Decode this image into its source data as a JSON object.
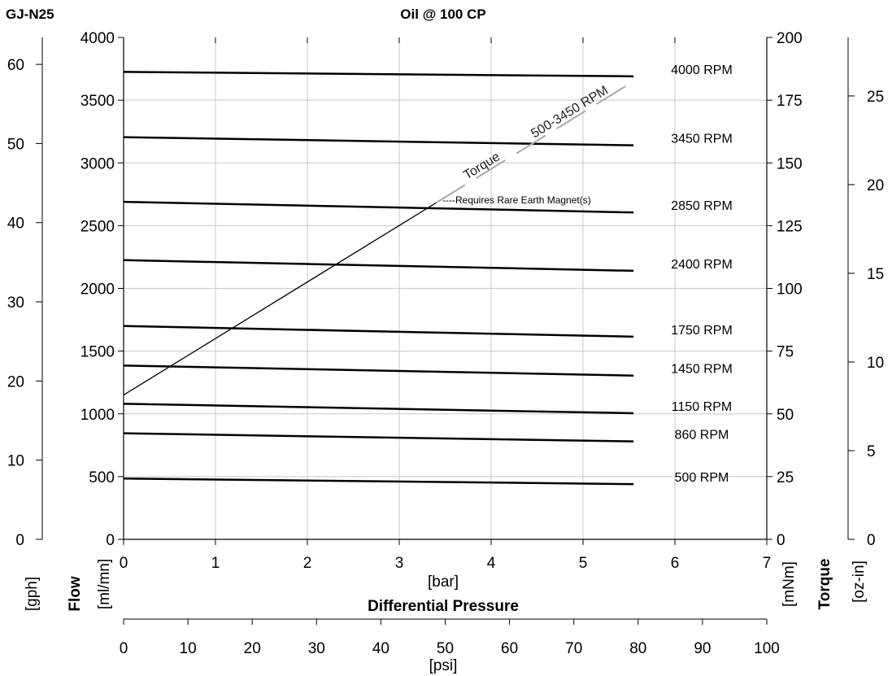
{
  "chart_data": {
    "type": "line",
    "model": "GJ-N25",
    "title": "Oil @ 100 CP",
    "xlabel": "Differential Pressure",
    "x_unit_bar": "[bar]",
    "x_unit_psi": "[psi]",
    "xlim_bar": [
      0,
      7
    ],
    "xlim_psi": [
      0,
      100
    ],
    "x_ticks_bar": [
      "0",
      "1",
      "2",
      "3",
      "4",
      "5",
      "6",
      "7"
    ],
    "x_ticks_psi": [
      "0",
      "10",
      "20",
      "30",
      "40",
      "50",
      "60",
      "70",
      "80",
      "90",
      "100"
    ],
    "flow_label": "Flow",
    "flow_unit_gph": "[gph]",
    "flow_unit_mlmin": "[ml/mn]",
    "torque_label": "Torque",
    "torque_unit_mnm": "[mNm]",
    "torque_unit_ozin": "[oz-in]",
    "ylim_mlmin": [
      0,
      4000
    ],
    "ylim_gph": [
      0,
      63.4
    ],
    "ylim_mnm": [
      0,
      200
    ],
    "ylim_ozin": [
      0,
      28.3
    ],
    "y_ticks_mlmin": [
      "0",
      "500",
      "1000",
      "1500",
      "2000",
      "2500",
      "3000",
      "3500",
      "4000"
    ],
    "y_ticks_gph": [
      "0",
      "10",
      "20",
      "30",
      "40",
      "50",
      "60"
    ],
    "y_ticks_mnm": [
      "0",
      "25",
      "50",
      "75",
      "100",
      "125",
      "150",
      "175",
      "200"
    ],
    "y_ticks_ozin": [
      "0",
      "5",
      "10",
      "15",
      "20",
      "25"
    ],
    "grid": true,
    "series": [
      {
        "name": "4000 RPM",
        "x": [
          0,
          5.55
        ],
        "y": [
          3725,
          3690
        ]
      },
      {
        "name": "3450 RPM",
        "x": [
          0,
          5.55
        ],
        "y": [
          3205,
          3140
        ]
      },
      {
        "name": "2850 RPM",
        "x": [
          0,
          5.55
        ],
        "y": [
          2690,
          2605
        ]
      },
      {
        "name": "2400 RPM",
        "x": [
          0,
          5.55
        ],
        "y": [
          2225,
          2140
        ]
      },
      {
        "name": "1750 RPM",
        "x": [
          0,
          5.55
        ],
        "y": [
          1700,
          1615
        ]
      },
      {
        "name": "1450 RPM",
        "x": [
          0,
          5.55
        ],
        "y": [
          1385,
          1305
        ]
      },
      {
        "name": "1150 RPM",
        "x": [
          0,
          5.55
        ],
        "y": [
          1080,
          1005
        ]
      },
      {
        "name": "860 RPM",
        "x": [
          0,
          5.55
        ],
        "y": [
          845,
          780
        ]
      },
      {
        "name": "500 RPM",
        "x": [
          0,
          5.55
        ],
        "y": [
          485,
          440
        ]
      }
    ],
    "torque": {
      "label_name": "Torque",
      "label_range": "500-3450 RPM",
      "x": [
        0,
        5.55
      ],
      "y_mnm": [
        57.5,
        182.5
      ],
      "x_rare_earth": 3.4
    },
    "annotation": "----Requires Rare Earth Magnet(s)",
    "colors": {
      "line": "#000000",
      "grid": "#c8c8c8",
      "torque_dashed": "#a9a9a9"
    }
  }
}
